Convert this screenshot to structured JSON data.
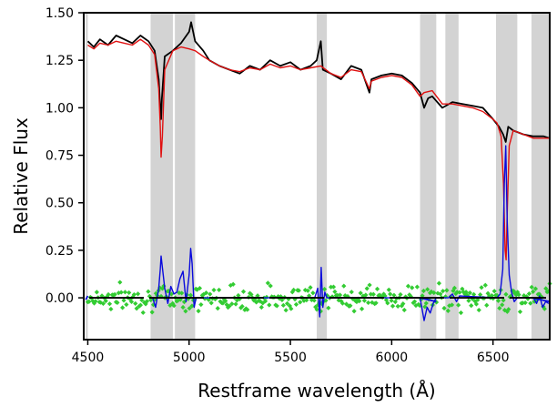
{
  "chart_data": {
    "type": "line",
    "title": "",
    "xlabel": "Restframe wavelength (Å)",
    "ylabel": "Relative Flux",
    "xlim": [
      4480,
      6780
    ],
    "ylim": [
      -0.22,
      1.5
    ],
    "xticks": [
      4500,
      5000,
      5500,
      6000,
      6500
    ],
    "xtick_labels": [
      "4500",
      "5000",
      "5500",
      "6000",
      "6500"
    ],
    "yticks": [
      0.0,
      0.25,
      0.5,
      0.75,
      1.0,
      1.25,
      1.5
    ],
    "ytick_labels": [
      "0.00",
      "0.25",
      "0.50",
      "0.75",
      "1.00",
      "1.25",
      "1.50"
    ],
    "grid": false,
    "legend": "none",
    "masked_regions": [
      [
        4490,
        4500
      ],
      [
        4810,
        4920
      ],
      [
        4930,
        5030
      ],
      [
        5630,
        5680
      ],
      [
        6140,
        6220
      ],
      [
        6265,
        6330
      ],
      [
        6515,
        6620
      ],
      [
        6690,
        6780
      ]
    ],
    "series": [
      {
        "role": "observed spectrum",
        "color": "#000000",
        "style": "line",
        "x": [
          4500,
          4530,
          4560,
          4600,
          4640,
          4680,
          4720,
          4760,
          4800,
          4830,
          4850,
          4860,
          4862,
          4866,
          4880,
          4920,
          4960,
          5000,
          5010,
          5030,
          5070,
          5100,
          5150,
          5200,
          5250,
          5300,
          5350,
          5400,
          5450,
          5500,
          5550,
          5600,
          5630,
          5650,
          5660,
          5700,
          5750,
          5800,
          5850,
          5890,
          5900,
          5950,
          6000,
          6050,
          6100,
          6140,
          6160,
          6180,
          6200,
          6250,
          6300,
          6350,
          6400,
          6450,
          6500,
          6530,
          6550,
          6563,
          6575,
          6600,
          6650,
          6700,
          6750,
          6780
        ],
        "y": [
          1.35,
          1.32,
          1.36,
          1.33,
          1.38,
          1.36,
          1.34,
          1.38,
          1.35,
          1.3,
          1.15,
          0.95,
          0.94,
          1.05,
          1.27,
          1.3,
          1.34,
          1.4,
          1.45,
          1.35,
          1.3,
          1.25,
          1.22,
          1.2,
          1.18,
          1.22,
          1.2,
          1.25,
          1.22,
          1.24,
          1.2,
          1.22,
          1.25,
          1.35,
          1.2,
          1.18,
          1.15,
          1.22,
          1.2,
          1.08,
          1.15,
          1.17,
          1.18,
          1.17,
          1.13,
          1.08,
          1.0,
          1.05,
          1.06,
          1.0,
          1.03,
          1.02,
          1.01,
          1.0,
          0.94,
          0.9,
          0.86,
          0.82,
          0.9,
          0.88,
          0.86,
          0.85,
          0.85,
          0.84
        ]
      },
      {
        "role": "model fit",
        "color": "#e01010",
        "style": "line",
        "x": [
          4500,
          4530,
          4560,
          4600,
          4640,
          4680,
          4720,
          4760,
          4800,
          4830,
          4850,
          4858,
          4862,
          4868,
          4880,
          4920,
          4960,
          5000,
          5030,
          5070,
          5100,
          5150,
          5200,
          5250,
          5300,
          5350,
          5400,
          5450,
          5500,
          5550,
          5600,
          5650,
          5700,
          5750,
          5800,
          5850,
          5890,
          5900,
          5950,
          6000,
          6050,
          6100,
          6140,
          6160,
          6200,
          6250,
          6300,
          6350,
          6400,
          6450,
          6500,
          6520,
          6540,
          6552,
          6560,
          6565,
          6570,
          6580,
          6600,
          6650,
          6700,
          6750,
          6780
        ],
        "y": [
          1.33,
          1.31,
          1.34,
          1.33,
          1.35,
          1.34,
          1.33,
          1.36,
          1.33,
          1.28,
          1.1,
          0.9,
          0.74,
          0.85,
          1.2,
          1.3,
          1.32,
          1.31,
          1.3,
          1.27,
          1.25,
          1.22,
          1.2,
          1.19,
          1.21,
          1.2,
          1.23,
          1.21,
          1.22,
          1.2,
          1.21,
          1.22,
          1.18,
          1.16,
          1.2,
          1.19,
          1.1,
          1.14,
          1.16,
          1.17,
          1.16,
          1.12,
          1.06,
          1.08,
          1.09,
          1.02,
          1.02,
          1.01,
          1.0,
          0.98,
          0.94,
          0.92,
          0.85,
          0.6,
          0.25,
          0.2,
          0.45,
          0.8,
          0.88,
          0.86,
          0.84,
          0.84,
          0.84
        ]
      },
      {
        "role": "residual emission",
        "color": "#0a0adc",
        "style": "line",
        "x": [
          4820,
          4835,
          4850,
          4858,
          4862,
          4868,
          4880,
          4895,
          4910,
          4925,
          4940,
          4955,
          4970,
          4985,
          5000,
          5008,
          5015,
          5025,
          5035,
          5620,
          5635,
          5645,
          5652,
          5660,
          5670,
          5680,
          6140,
          6150,
          6160,
          6175,
          6190,
          6205,
          6220,
          6280,
          6300,
          6320,
          6335,
          6520,
          6535,
          6548,
          6556,
          6563,
          6570,
          6580,
          6592,
          6605,
          6620,
          6700,
          6715,
          6730,
          6745,
          6760,
          6775
        ],
        "y": [
          0.0,
          -0.05,
          0.05,
          0.15,
          0.22,
          0.16,
          0.05,
          -0.03,
          0.06,
          0.02,
          0.03,
          0.1,
          0.14,
          -0.02,
          0.12,
          0.26,
          0.18,
          -0.05,
          0.0,
          0.0,
          0.05,
          -0.1,
          0.16,
          -0.05,
          0.03,
          0.0,
          0.0,
          -0.06,
          -0.12,
          -0.05,
          -0.08,
          -0.03,
          0.0,
          0.0,
          0.02,
          -0.02,
          0.01,
          0.0,
          0.02,
          0.15,
          0.6,
          0.8,
          0.4,
          0.12,
          0.03,
          -0.02,
          0.0,
          0.0,
          -0.03,
          0.01,
          -0.05,
          -0.02,
          -0.03
        ]
      },
      {
        "role": "masked segments",
        "color": "#0a0adc",
        "style": "segments",
        "segments": [
          [
            [
              4490,
              -0.01
            ],
            [
              4500,
              0.01
            ]
          ],
          [
            [
              6140,
              0.0
            ],
            [
              6220,
              -0.02
            ]
          ],
          [
            [
              6690,
              0.0
            ],
            [
              6780,
              -0.02
            ]
          ]
        ]
      },
      {
        "role": "residuals",
        "color": "#33cc33",
        "style": "scatter",
        "x_range": [
          4500,
          6780
        ],
        "n_points": 360,
        "mean": 0.0,
        "spread": 0.05
      },
      {
        "role": "zero level",
        "color": "#000000",
        "style": "hline",
        "y": 0.0
      }
    ]
  }
}
